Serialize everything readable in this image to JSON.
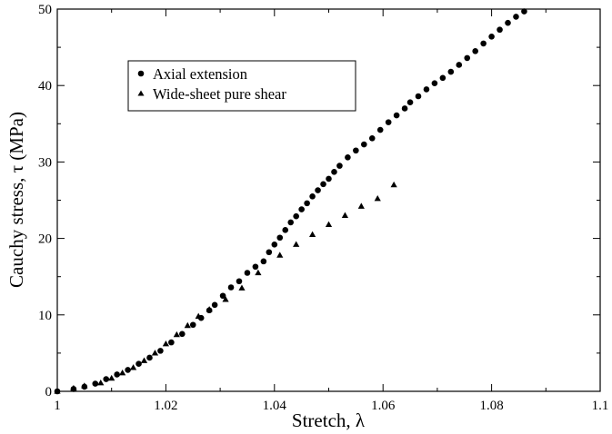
{
  "chart_data": {
    "type": "scatter",
    "title": "",
    "xlabel": "Stretch,  λ",
    "ylabel": "Cauchy stress,  τ (MPa)",
    "xlim": [
      1,
      1.1
    ],
    "ylim": [
      0,
      50
    ],
    "x_ticks": [
      "1",
      "1.02",
      "1.04",
      "1.06",
      "1.08",
      "1.1"
    ],
    "y_ticks": [
      "0",
      "10",
      "20",
      "30",
      "40",
      "50"
    ],
    "grid": false,
    "legend_position": "upper-left-inside",
    "series": [
      {
        "name": "Axial extension",
        "marker": "circle",
        "color": "#000000",
        "x": [
          1.0,
          1.003,
          1.005,
          1.007,
          1.009,
          1.011,
          1.013,
          1.015,
          1.017,
          1.019,
          1.021,
          1.023,
          1.025,
          1.0265,
          1.028,
          1.029,
          1.0305,
          1.032,
          1.0335,
          1.035,
          1.0365,
          1.038,
          1.039,
          1.04,
          1.041,
          1.042,
          1.043,
          1.044,
          1.045,
          1.046,
          1.047,
          1.048,
          1.049,
          1.05,
          1.051,
          1.052,
          1.0535,
          1.055,
          1.0565,
          1.058,
          1.0595,
          1.061,
          1.0625,
          1.064,
          1.065,
          1.0665,
          1.068,
          1.0695,
          1.071,
          1.0725,
          1.074,
          1.0755,
          1.077,
          1.0785,
          1.08,
          1.0815,
          1.083,
          1.0845,
          1.086
        ],
        "y": [
          0.0,
          0.3,
          0.6,
          1.0,
          1.6,
          2.2,
          2.8,
          3.6,
          4.4,
          5.3,
          6.4,
          7.5,
          8.7,
          9.6,
          10.6,
          11.3,
          12.5,
          13.6,
          14.4,
          15.5,
          16.3,
          17.0,
          18.2,
          19.2,
          20.1,
          21.1,
          22.1,
          22.9,
          23.8,
          24.6,
          25.5,
          26.3,
          27.1,
          27.8,
          28.7,
          29.5,
          30.6,
          31.5,
          32.3,
          33.1,
          34.2,
          35.2,
          36.1,
          37.0,
          37.8,
          38.6,
          39.5,
          40.3,
          41.0,
          41.8,
          42.7,
          43.6,
          44.5,
          45.5,
          46.4,
          47.3,
          48.2,
          49.0,
          49.7
        ]
      },
      {
        "name": "Wide-sheet pure shear",
        "marker": "triangle",
        "color": "#000000",
        "x": [
          1.0,
          1.003,
          1.005,
          1.008,
          1.01,
          1.012,
          1.014,
          1.016,
          1.018,
          1.02,
          1.022,
          1.024,
          1.026,
          1.028,
          1.031,
          1.034,
          1.037,
          1.041,
          1.044,
          1.047,
          1.05,
          1.053,
          1.056,
          1.059,
          1.062
        ],
        "y": [
          0.0,
          0.4,
          0.7,
          1.1,
          1.7,
          2.4,
          3.1,
          4.0,
          5.0,
          6.2,
          7.4,
          8.6,
          9.8,
          10.7,
          12.0,
          13.5,
          15.5,
          17.8,
          19.2,
          20.5,
          21.8,
          23.0,
          24.2,
          25.2,
          27.0
        ]
      }
    ]
  }
}
